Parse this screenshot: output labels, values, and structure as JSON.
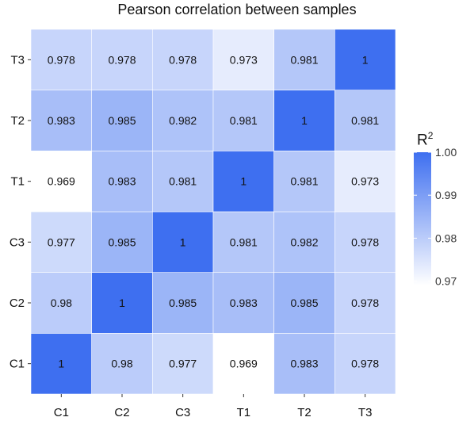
{
  "chart_data": {
    "type": "heatmap",
    "title": "Pearson correlation between samples",
    "x_categories": [
      "C1",
      "C2",
      "C3",
      "T1",
      "T2",
      "T3"
    ],
    "y_categories": [
      "C1",
      "C2",
      "C3",
      "T1",
      "T2",
      "T3"
    ],
    "values": [
      [
        1,
        0.98,
        0.977,
        0.969,
        0.983,
        0.978
      ],
      [
        0.98,
        1,
        0.985,
        0.983,
        0.985,
        0.978
      ],
      [
        0.977,
        0.985,
        1,
        0.981,
        0.982,
        0.978
      ],
      [
        0.969,
        0.983,
        0.981,
        1,
        0.981,
        0.973
      ],
      [
        0.983,
        0.985,
        0.982,
        0.981,
        1,
        0.981
      ],
      [
        0.978,
        0.978,
        0.978,
        0.973,
        0.981,
        1
      ]
    ],
    "labels": [
      [
        "1",
        "0.98",
        "0.977",
        "0.969",
        "0.983",
        "0.978"
      ],
      [
        "0.98",
        "1",
        "0.985",
        "0.983",
        "0.985",
        "0.978"
      ],
      [
        "0.977",
        "0.985",
        "1",
        "0.981",
        "0.982",
        "0.978"
      ],
      [
        "0.969",
        "0.983",
        "0.981",
        "1",
        "0.981",
        "0.973"
      ],
      [
        "0.983",
        "0.985",
        "0.982",
        "0.981",
        "1",
        "0.981"
      ],
      [
        "0.978",
        "0.978",
        "0.978",
        "0.973",
        "0.981",
        "1"
      ]
    ],
    "color_scale": {
      "title": "R",
      "title_superscript": "2",
      "min": 0.969,
      "max": 1.0,
      "low_color": "#ffffff",
      "high_color": "#3e6ff0",
      "ticks": [
        0.97,
        0.98,
        0.99,
        1.0
      ],
      "tick_labels": [
        "0.97",
        "0.98",
        "0.99",
        "1.00"
      ]
    }
  }
}
